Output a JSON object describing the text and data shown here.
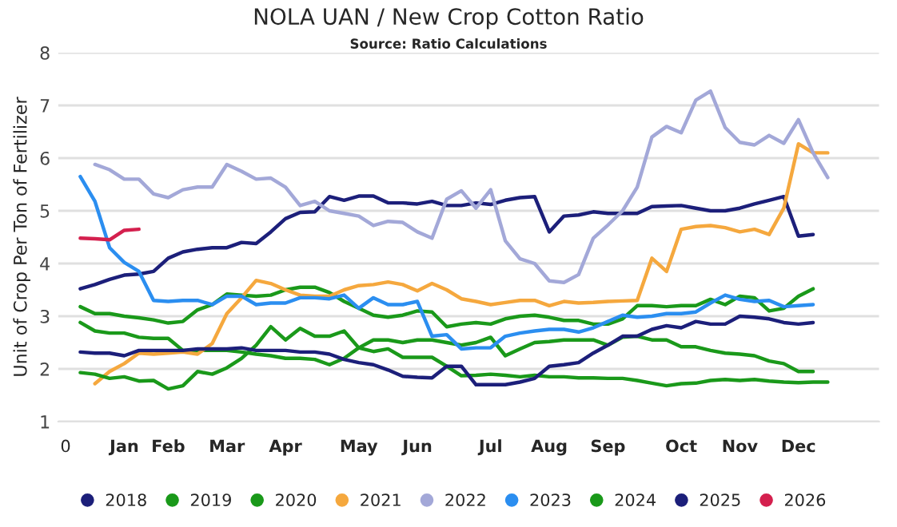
{
  "chart_data": {
    "type": "line",
    "title": "NOLA UAN / New Crop Cotton Ratio",
    "subtitle": "Source: Ratio Calculations",
    "ylabel": "Unit of Crop Per Ton of Fertilizer",
    "categories": [
      "0",
      null,
      null,
      null,
      "Jan",
      null,
      null,
      "Feb",
      null,
      null,
      null,
      "Mar",
      null,
      null,
      null,
      "Apr",
      null,
      null,
      null,
      null,
      "May",
      null,
      null,
      null,
      "Jun",
      null,
      null,
      null,
      null,
      "Jul",
      null,
      null,
      null,
      "Aug",
      null,
      null,
      null,
      "Sep",
      null,
      null,
      null,
      null,
      "Oct",
      null,
      null,
      null,
      "Nov",
      null,
      null,
      null,
      "Dec",
      null,
      null,
      null,
      null,
      null
    ],
    "ylim": [
      1,
      8
    ],
    "yticks": [
      1,
      2,
      3,
      4,
      5,
      6,
      7,
      8
    ],
    "grid": "y",
    "legend": "bottom",
    "line_style": "solid",
    "series": [
      {
        "name": "2018",
        "color": "#1c1f7a",
        "values": [
          null,
          3.52,
          3.6,
          3.7,
          3.78,
          3.8,
          3.85,
          4.1,
          4.22,
          4.27,
          4.3,
          4.3,
          4.4,
          4.38,
          4.6,
          4.85,
          4.97,
          4.98,
          5.27,
          5.2,
          5.28,
          5.28,
          5.15,
          5.15,
          5.13,
          5.18,
          5.1,
          5.1,
          5.15,
          5.12,
          5.2,
          5.25,
          5.27,
          4.6,
          4.9,
          4.92,
          4.98,
          4.95,
          4.95,
          4.95,
          5.08,
          5.09,
          5.1,
          5.05,
          5.0,
          5.0,
          5.05,
          5.13,
          5.2,
          5.27,
          4.52,
          4.55,
          null,
          null,
          null,
          null
        ]
      },
      {
        "name": "2019",
        "color": "#1a991a",
        "values": [
          null,
          3.18,
          3.05,
          3.05,
          3.0,
          2.97,
          2.93,
          2.87,
          2.9,
          3.12,
          3.22,
          3.42,
          3.4,
          3.38,
          3.4,
          3.5,
          3.55,
          3.55,
          3.45,
          3.28,
          3.15,
          3.02,
          2.98,
          3.02,
          3.1,
          3.08,
          2.8,
          2.85,
          2.88,
          2.85,
          2.95,
          3.0,
          3.02,
          2.98,
          2.92,
          2.92,
          2.85,
          2.85,
          2.95,
          3.2,
          3.2,
          3.18,
          3.2,
          3.2,
          3.32,
          3.22,
          3.38,
          3.35,
          3.1,
          3.15,
          3.38,
          3.52,
          null,
          null,
          null,
          null
        ]
      },
      {
        "name": "2020",
        "color": "#1a991a",
        "values": [
          null,
          2.88,
          2.72,
          2.68,
          2.68,
          2.6,
          2.58,
          2.58,
          2.35,
          2.35,
          2.35,
          2.35,
          2.32,
          2.28,
          2.25,
          2.2,
          2.2,
          2.18,
          2.08,
          2.2,
          2.4,
          2.55,
          2.55,
          2.5,
          2.55,
          2.55,
          2.5,
          2.45,
          2.5,
          2.6,
          2.25,
          2.38,
          2.5,
          2.52,
          2.55,
          2.55,
          2.55,
          2.45,
          2.6,
          2.62,
          2.55,
          2.55,
          2.42,
          2.42,
          2.35,
          2.3,
          2.28,
          2.25,
          2.15,
          2.1,
          1.95,
          1.95,
          null,
          null,
          null,
          null
        ]
      },
      {
        "name": "2021",
        "color": "#f5a83e",
        "values": [
          null,
          null,
          1.72,
          1.95,
          2.1,
          2.3,
          2.28,
          2.3,
          2.32,
          2.28,
          2.48,
          3.05,
          3.35,
          3.68,
          3.62,
          3.5,
          3.4,
          3.38,
          3.38,
          3.5,
          3.58,
          3.6,
          3.65,
          3.6,
          3.48,
          3.62,
          3.5,
          3.33,
          3.28,
          3.22,
          3.26,
          3.3,
          3.3,
          3.2,
          3.28,
          3.25,
          3.26,
          3.28,
          3.29,
          3.3,
          4.1,
          3.85,
          4.65,
          4.7,
          4.72,
          4.68,
          4.6,
          4.65,
          4.55,
          5.05,
          6.27,
          6.1,
          6.1,
          null,
          null,
          null
        ]
      },
      {
        "name": "2022",
        "color": "#a3a8d8",
        "values": [
          null,
          null,
          5.88,
          5.78,
          5.6,
          5.6,
          5.32,
          5.25,
          5.4,
          5.45,
          5.45,
          5.88,
          5.75,
          5.6,
          5.62,
          5.45,
          5.1,
          5.18,
          5.0,
          4.95,
          4.9,
          4.72,
          4.8,
          4.78,
          4.6,
          4.48,
          5.22,
          5.38,
          5.05,
          5.4,
          4.43,
          4.09,
          4.0,
          3.67,
          3.64,
          3.79,
          4.48,
          4.73,
          5.0,
          5.45,
          6.4,
          6.6,
          6.48,
          7.1,
          7.27,
          6.58,
          6.3,
          6.25,
          6.43,
          6.28,
          6.73,
          6.1,
          5.63,
          null,
          null,
          null
        ]
      },
      {
        "name": "2023",
        "color": "#2b8ef0",
        "values": [
          null,
          5.65,
          5.18,
          4.3,
          4.02,
          3.85,
          3.3,
          3.28,
          3.3,
          3.3,
          3.22,
          3.38,
          3.38,
          3.22,
          3.25,
          3.25,
          3.35,
          3.35,
          3.33,
          3.4,
          3.15,
          3.35,
          3.22,
          3.22,
          3.28,
          2.62,
          2.65,
          2.38,
          2.4,
          2.4,
          2.62,
          2.68,
          2.72,
          2.75,
          2.75,
          2.7,
          2.78,
          2.9,
          3.02,
          2.98,
          3.0,
          3.05,
          3.05,
          3.08,
          3.25,
          3.4,
          3.32,
          3.28,
          3.3,
          3.18,
          3.2,
          3.22,
          null,
          null,
          null,
          null
        ]
      },
      {
        "name": "2024",
        "color": "#1a991a",
        "values": [
          null,
          1.93,
          1.9,
          1.82,
          1.85,
          1.77,
          1.78,
          1.62,
          1.68,
          1.95,
          1.9,
          2.02,
          2.2,
          2.45,
          2.8,
          2.55,
          2.77,
          2.62,
          2.62,
          2.72,
          2.4,
          2.33,
          2.38,
          2.22,
          2.22,
          2.22,
          2.05,
          1.87,
          1.88,
          1.9,
          1.88,
          1.85,
          1.88,
          1.85,
          1.85,
          1.83,
          1.83,
          1.82,
          1.82,
          1.78,
          1.73,
          1.68,
          1.72,
          1.73,
          1.78,
          1.8,
          1.78,
          1.8,
          1.77,
          1.75,
          1.74,
          1.75,
          1.75,
          null,
          null,
          null
        ]
      },
      {
        "name": "2025",
        "color": "#1c1f7a",
        "values": [
          null,
          2.32,
          2.3,
          2.3,
          2.25,
          2.35,
          2.35,
          2.35,
          2.35,
          2.38,
          2.38,
          2.38,
          2.4,
          2.35,
          2.35,
          2.35,
          2.32,
          2.32,
          2.28,
          2.18,
          2.12,
          2.08,
          1.98,
          1.86,
          1.84,
          1.83,
          2.05,
          2.05,
          1.7,
          1.7,
          1.7,
          1.75,
          1.82,
          2.05,
          2.08,
          2.12,
          2.3,
          2.45,
          2.62,
          2.62,
          2.75,
          2.82,
          2.78,
          2.9,
          2.85,
          2.85,
          3.0,
          2.98,
          2.95,
          2.88,
          2.85,
          2.88,
          null,
          null,
          null,
          null
        ]
      },
      {
        "name": "2026",
        "color": "#d4204e",
        "values": [
          null,
          4.48,
          4.47,
          4.45,
          4.63,
          4.65,
          null,
          null,
          null,
          null,
          null,
          null,
          null,
          null,
          null,
          null,
          null,
          null,
          null,
          null,
          null,
          null,
          null,
          null,
          null,
          null,
          null,
          null,
          null,
          null,
          null,
          null,
          null,
          null,
          null,
          null,
          null,
          null,
          null,
          null,
          null,
          null,
          null,
          null,
          null,
          null,
          null,
          null,
          null,
          null,
          null,
          null,
          null,
          null,
          null,
          null
        ]
      }
    ]
  }
}
